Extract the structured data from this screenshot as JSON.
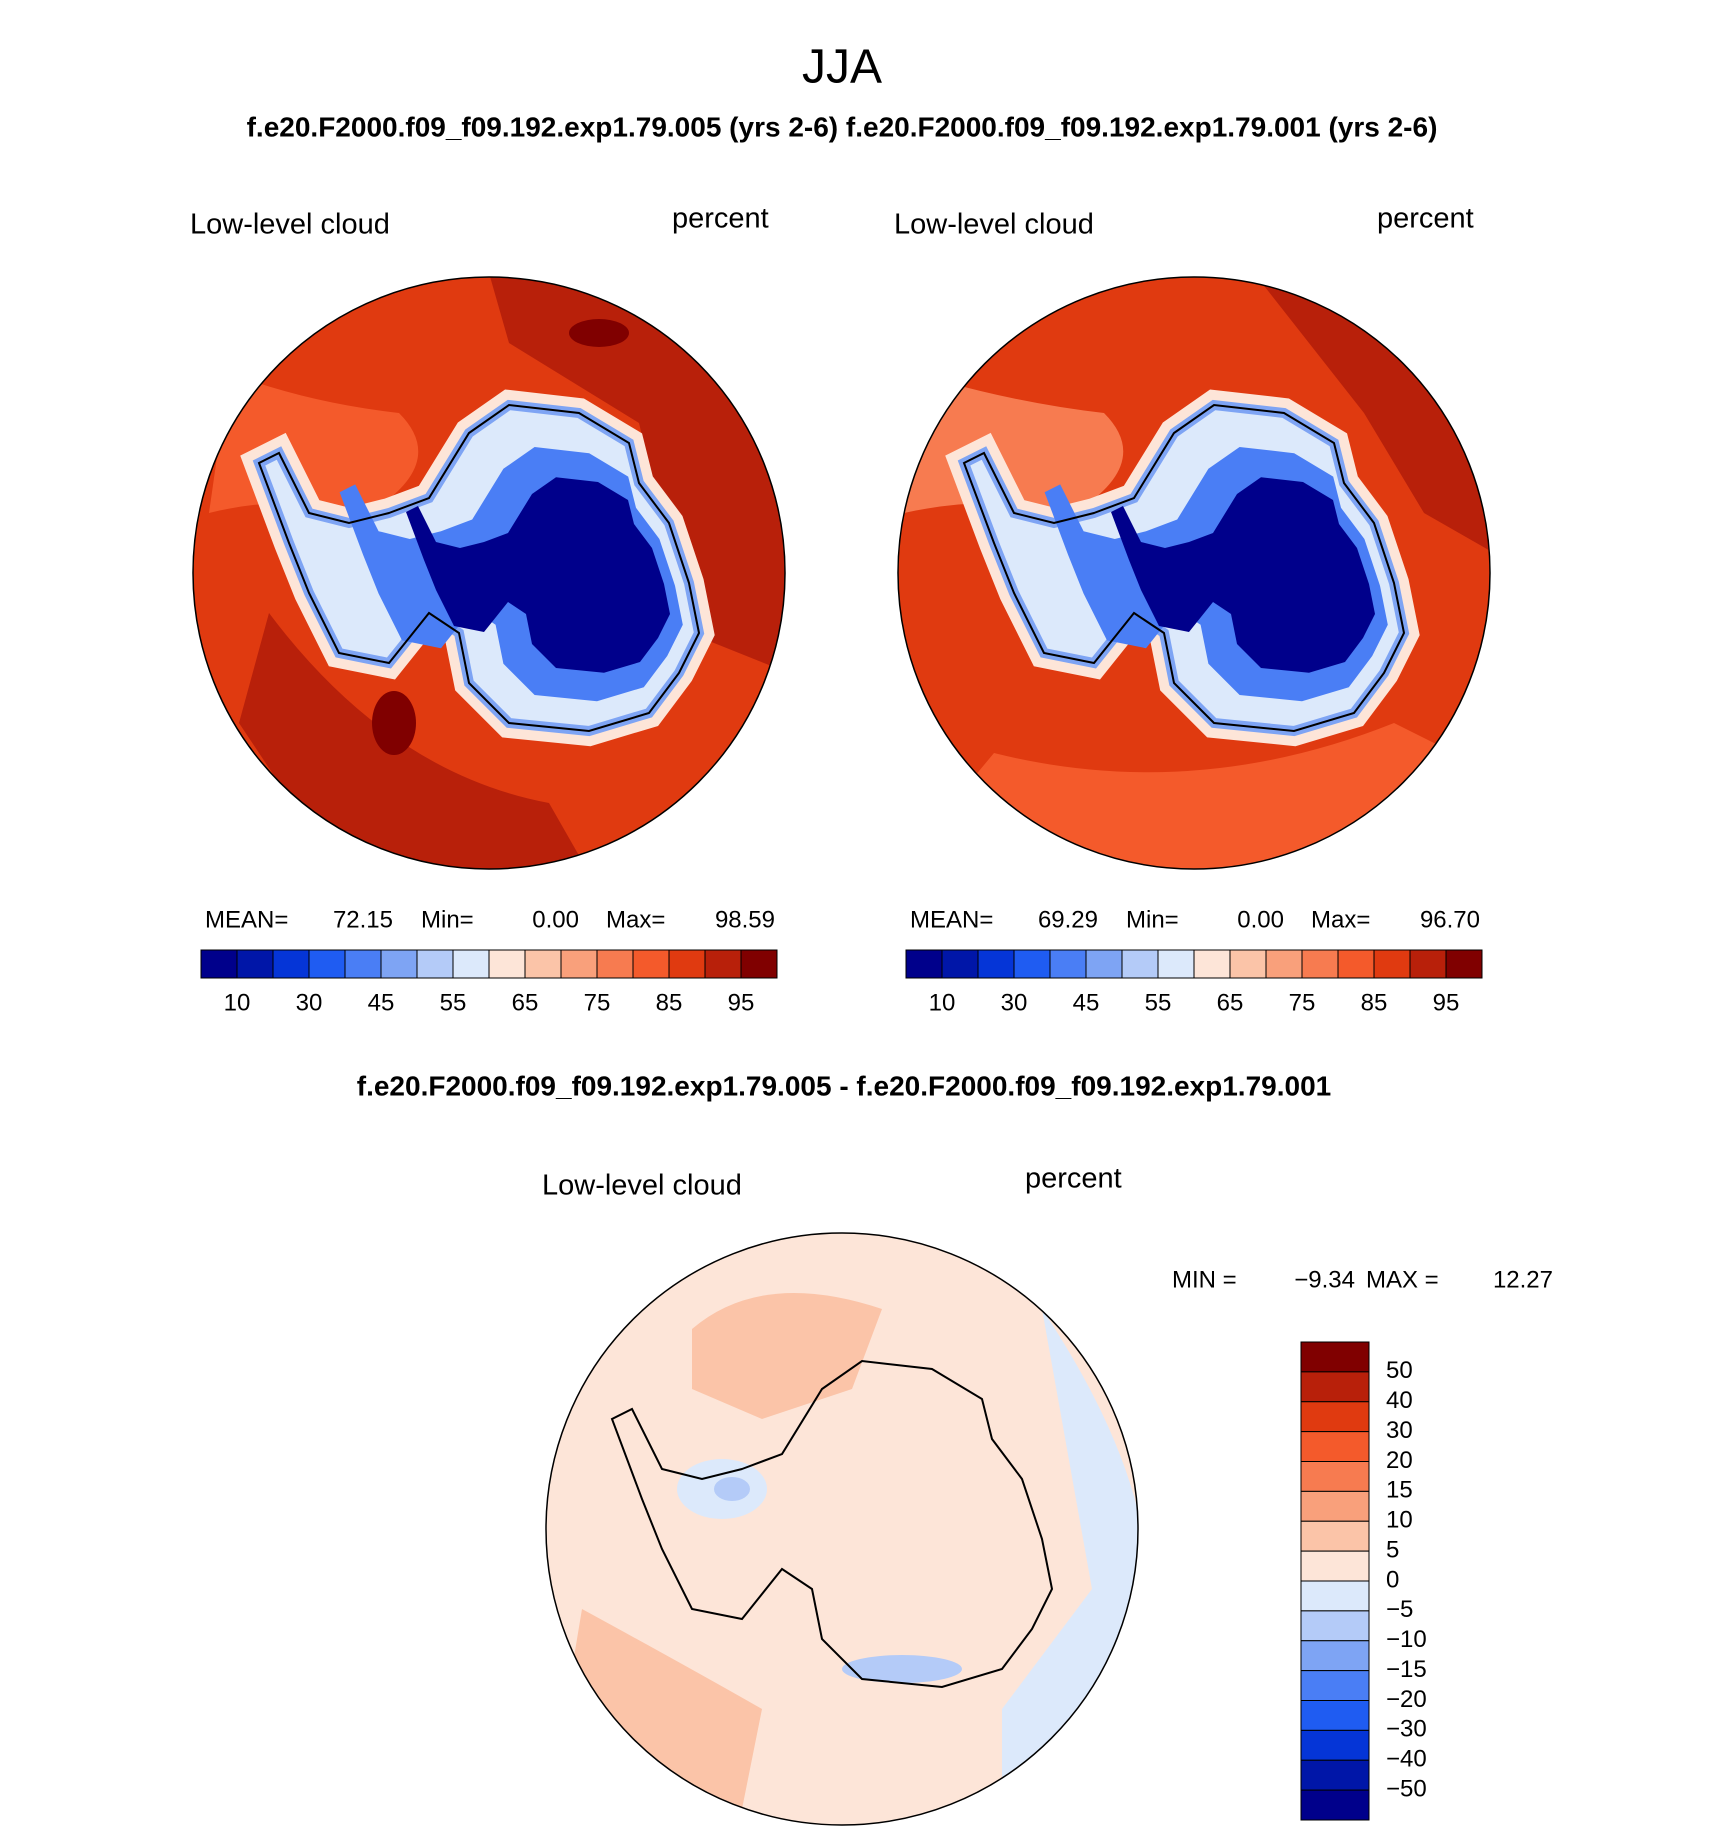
{
  "title": "JJA",
  "subtitle": "f.e20.F2000.f09_f09.192.exp1.79.005 (yrs 2-6) f.e20.F2000.f09_f09.192.exp1.79.001 (yrs 2-6)",
  "panels": [
    {
      "label": "Low-level cloud",
      "units": "percent",
      "stats": [
        {
          "label": "MEAN=",
          "value": "72.15"
        },
        {
          "label": "Min=",
          "value": "0.00"
        },
        {
          "label": "Max=",
          "value": "98.59"
        }
      ]
    },
    {
      "label": "Low-level cloud",
      "units": "percent",
      "stats": [
        {
          "label": "MEAN=",
          "value": "69.29"
        },
        {
          "label": "Min=",
          "value": "0.00"
        },
        {
          "label": "Max=",
          "value": "96.70"
        }
      ]
    }
  ],
  "colorbar": {
    "colors": [
      "#00008b",
      "#0016a8",
      "#0535d7",
      "#1f5cf2",
      "#4a7ef5",
      "#7ea4f4",
      "#b4cbf8",
      "#dce9fb",
      "#fde5d8",
      "#fbc4a8",
      "#f9a07b",
      "#f77b50",
      "#f45a2b",
      "#e03a10",
      "#b8200a",
      "#800000"
    ],
    "labels": [
      "10",
      "30",
      "45",
      "55",
      "65",
      "75",
      "85",
      "95"
    ]
  },
  "difference": {
    "title": "f.e20.F2000.f09_f09.192.exp1.79.005 - f.e20.F2000.f09_f09.192.exp1.79.001",
    "label": "Low-level cloud",
    "units": "percent",
    "stats": [
      {
        "label": "MIN =",
        "value": "−9.34"
      },
      {
        "label": "MAX =",
        "value": "12.27"
      }
    ],
    "colorbar": {
      "colors": [
        "#800000",
        "#b8200a",
        "#e03a10",
        "#f45a2b",
        "#f77b50",
        "#f9a07b",
        "#fbc4a8",
        "#fde5d8",
        "#dce9fb",
        "#b4cbf8",
        "#7ea4f4",
        "#4a7ef5",
        "#1f5cf2",
        "#0535d7",
        "#0016a8",
        "#00008b"
      ],
      "labels": [
        "50",
        "40",
        "30",
        "20",
        "15",
        "10",
        "5",
        "0",
        "−5",
        "−10",
        "−15",
        "−20",
        "−30",
        "−40",
        "−50"
      ]
    }
  }
}
